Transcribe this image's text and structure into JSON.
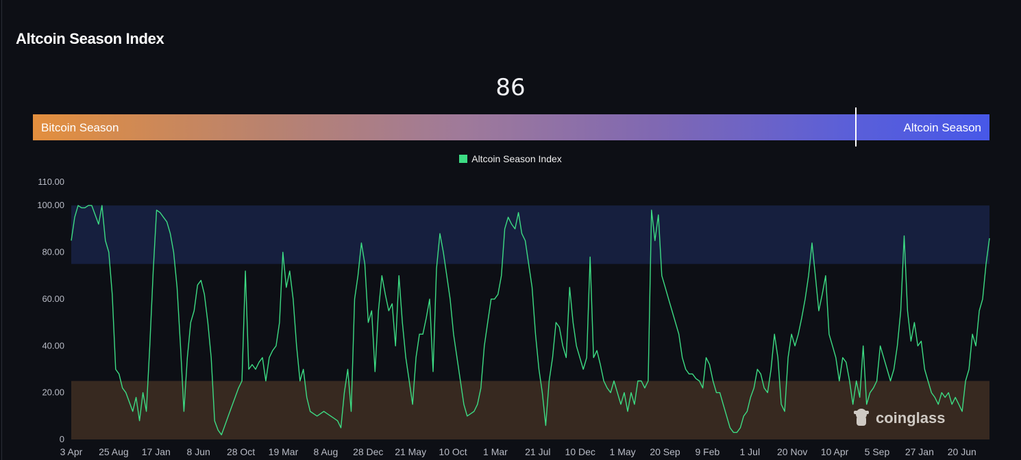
{
  "header": {
    "title": "Altcoin Season Index",
    "current_value": "86"
  },
  "gauge": {
    "left_label": "Bitcoin Season",
    "right_label": "Altcoin Season",
    "value": 86,
    "min": 0,
    "max": 100
  },
  "colors": {
    "line": "#3ddc84",
    "altcoin_band": "#161f3e",
    "bitcoin_band": "#372920",
    "background": "#0d0f15"
  },
  "watermark": "coinglass",
  "chart_data": {
    "type": "line",
    "title": "",
    "legend": {
      "position": "top-center",
      "entries": [
        "Altcoin Season Index"
      ]
    },
    "series": [
      {
        "name": "Altcoin Season Index",
        "values": [
          85,
          95,
          100,
          99,
          99,
          100,
          100,
          96,
          92,
          100,
          85,
          80,
          62,
          30,
          28,
          22,
          20,
          16,
          12,
          18,
          8,
          20,
          12,
          40,
          72,
          98,
          97,
          95,
          93,
          88,
          80,
          65,
          40,
          12,
          35,
          50,
          55,
          66,
          68,
          62,
          50,
          35,
          8,
          4,
          2,
          6,
          10,
          14,
          18,
          22,
          25,
          72,
          30,
          32,
          30,
          33,
          35,
          25,
          35,
          38,
          40,
          50,
          80,
          65,
          72,
          60,
          40,
          25,
          30,
          18,
          12,
          11,
          10,
          11,
          12,
          11,
          10,
          9,
          8,
          5,
          20,
          30,
          12,
          60,
          70,
          84,
          75,
          50,
          55,
          29,
          55,
          70,
          62,
          55,
          58,
          40,
          70,
          50,
          35,
          25,
          15,
          35,
          45,
          45,
          52,
          60,
          29,
          73,
          88,
          80,
          70,
          60,
          45,
          35,
          25,
          15,
          10,
          11,
          12,
          15,
          22,
          40,
          50,
          60,
          60,
          62,
          70,
          90,
          95,
          92,
          90,
          97,
          88,
          85,
          75,
          65,
          45,
          30,
          20,
          6,
          25,
          35,
          50,
          48,
          40,
          35,
          65,
          50,
          40,
          35,
          30,
          35,
          78,
          35,
          38,
          32,
          25,
          22,
          20,
          25,
          20,
          15,
          20,
          12,
          20,
          15,
          25,
          25,
          22,
          25,
          98,
          85,
          96,
          70,
          65,
          60,
          55,
          50,
          45,
          35,
          30,
          28,
          28,
          26,
          25,
          22,
          35,
          32,
          25,
          20,
          20,
          15,
          10,
          5,
          3,
          3,
          5,
          10,
          12,
          18,
          22,
          30,
          28,
          22,
          20,
          30,
          45,
          35,
          15,
          12,
          35,
          45,
          40,
          45,
          52,
          60,
          70,
          84,
          70,
          55,
          62,
          70,
          45,
          40,
          35,
          25,
          35,
          33,
          25,
          15,
          25,
          18,
          40,
          15,
          20,
          22,
          25,
          40,
          35,
          30,
          25,
          30,
          40,
          55,
          87,
          55,
          42,
          50,
          40,
          42,
          30,
          25,
          20,
          18,
          15,
          20,
          18,
          20,
          15,
          18,
          15,
          12,
          25,
          30,
          45,
          40,
          55,
          60,
          75,
          86
        ]
      }
    ],
    "x_tick_labels": [
      "3 Apr",
      "25 Aug",
      "17 Jan",
      "8 Jun",
      "28 Oct",
      "19 Mar",
      "8 Aug",
      "28 Dec",
      "21 May",
      "10 Oct",
      "1 Mar",
      "21 Jul",
      "10 Dec",
      "1 May",
      "20 Sep",
      "9 Feb",
      "1 Jul",
      "20 Nov",
      "10 Apr",
      "5 Sep",
      "27 Jan",
      "20 Jun"
    ],
    "y_tick_labels": [
      "0",
      "20.00",
      "40.00",
      "60.00",
      "80.00",
      "100.00",
      "110.00"
    ],
    "y_ticks": [
      0,
      20,
      40,
      60,
      80,
      100,
      110
    ],
    "ylim": [
      0,
      110
    ],
    "bands": [
      {
        "from": 75,
        "to": 100,
        "zone": "altcoin"
      },
      {
        "from": 0,
        "to": 25,
        "zone": "bitcoin"
      }
    ],
    "grid": false
  }
}
